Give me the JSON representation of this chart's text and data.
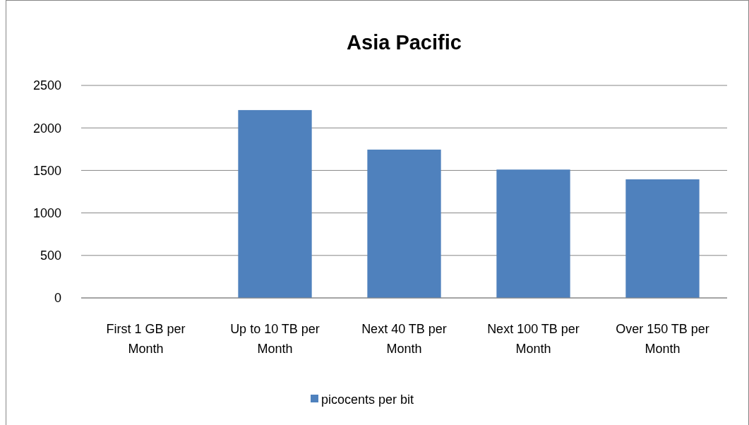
{
  "chart_data": {
    "type": "bar",
    "title": "Asia Pacific",
    "categories": [
      "First 1 GB per Month",
      "Up to 10 TB per Month",
      "Next 40 TB per Month",
      "Next 100 TB per Month",
      "Over 150 TB per Month"
    ],
    "series": [
      {
        "name": "picocents per bit",
        "color": "#4f81bd",
        "values": [
          0,
          2210,
          1745,
          1510,
          1395
        ]
      }
    ],
    "ylim": [
      0,
      2500
    ],
    "yticks": [
      0,
      500,
      1000,
      1500,
      2000,
      2500
    ],
    "grid": "y",
    "legend": "bottom"
  }
}
